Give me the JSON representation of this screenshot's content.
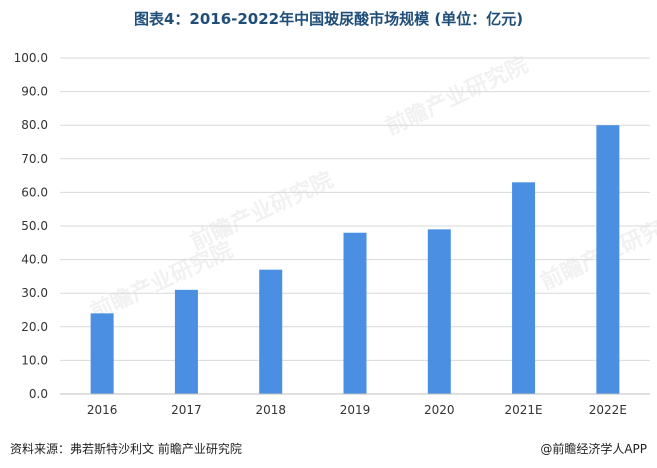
{
  "chart_data": {
    "type": "bar",
    "title": "图表4：2016-2022年中国玻尿酸市场规模 (单位：亿元)",
    "categories": [
      "2016",
      "2017",
      "2018",
      "2019",
      "2020",
      "2021E",
      "2022E"
    ],
    "values": [
      24,
      31,
      37,
      48,
      49,
      63,
      80
    ],
    "ylim": [
      0,
      100
    ],
    "yticks": [
      "0.0",
      "10.0",
      "20.0",
      "30.0",
      "40.0",
      "50.0",
      "60.0",
      "70.0",
      "80.0",
      "90.0",
      "100.0"
    ],
    "grid": true,
    "legend": "none",
    "bar_color": "#4a8fe2"
  },
  "footer": {
    "source": "资料来源：弗若斯特沙利文 前瞻产业研究院",
    "brand": "@前瞻经济学人APP"
  },
  "watermark": "前瞻产业研究院"
}
